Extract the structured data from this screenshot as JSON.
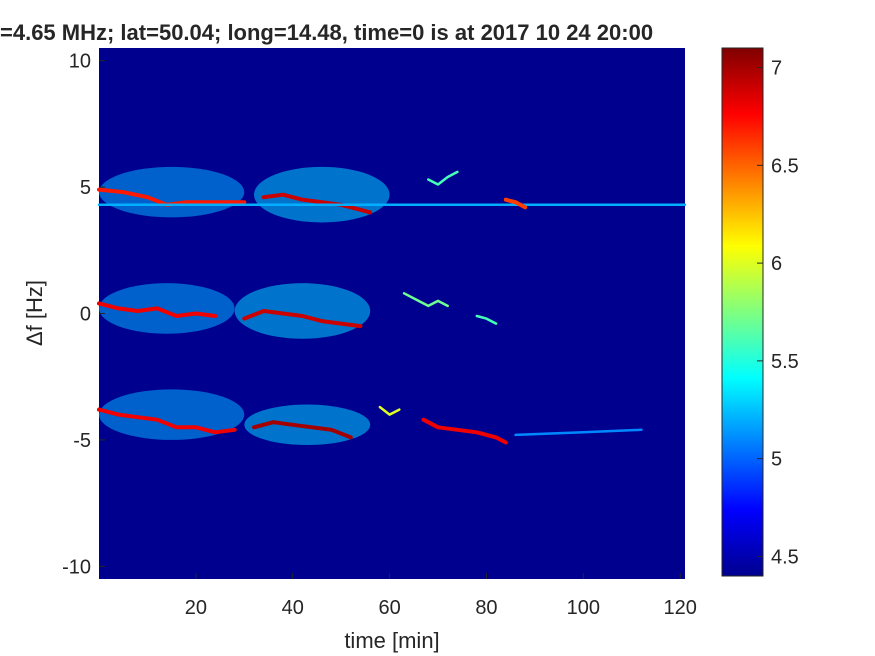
{
  "chart_data": {
    "type": "heatmap",
    "title": "=4.65 MHz;  lat=50.04; long=14.48, time=0 is at 2017 10 24 20:00",
    "xlabel": "time [min]",
    "ylabel": "Δf [Hz]",
    "xlim": [
      0,
      121
    ],
    "ylim": [
      -10.5,
      10.5
    ],
    "x_ticks": [
      20,
      40,
      60,
      80,
      100,
      120
    ],
    "y_ticks": [
      -10,
      -5,
      0,
      5,
      10
    ],
    "colormap": "jet",
    "colorbar": {
      "min": 4.4,
      "max": 7.1,
      "ticks": [
        4.5,
        5,
        5.5,
        6,
        6.5,
        7
      ],
      "tick_labels": [
        "4.5",
        "5",
        "5.5",
        "6",
        "6.5",
        "7"
      ]
    },
    "background_color": "#00008f",
    "traces": [
      {
        "points": [
          [
            0,
            4.9
          ],
          [
            5,
            4.8
          ],
          [
            10,
            4.6
          ],
          [
            14,
            4.3
          ],
          [
            18,
            4.4
          ],
          [
            22,
            4.4
          ],
          [
            26,
            4.4
          ],
          [
            30,
            4.4
          ]
        ],
        "level": 6.7
      },
      {
        "points": [
          [
            34,
            4.6
          ],
          [
            38,
            4.7
          ],
          [
            42,
            4.5
          ],
          [
            46,
            4.4
          ],
          [
            50,
            4.3
          ],
          [
            54,
            4.1
          ],
          [
            56,
            4.0
          ]
        ],
        "level": 6.9
      },
      {
        "points": [
          [
            0,
            4.3
          ],
          [
            40,
            4.3
          ],
          [
            80,
            4.3
          ],
          [
            88,
            4.3
          ],
          [
            121,
            4.3
          ]
        ],
        "level": 5.2
      },
      {
        "points": [
          [
            84,
            4.5
          ],
          [
            86,
            4.4
          ],
          [
            88,
            4.2
          ]
        ],
        "level": 6.6
      },
      {
        "points": [
          [
            68,
            5.3
          ],
          [
            70,
            5.1
          ],
          [
            72,
            5.4
          ],
          [
            74,
            5.6
          ]
        ],
        "level": 5.6
      },
      {
        "points": [
          [
            0,
            0.4
          ],
          [
            4,
            0.2
          ],
          [
            8,
            0.1
          ],
          [
            12,
            0.2
          ],
          [
            16,
            -0.1
          ],
          [
            20,
            0.0
          ],
          [
            24,
            -0.1
          ]
        ],
        "level": 6.8
      },
      {
        "points": [
          [
            30,
            -0.2
          ],
          [
            34,
            0.1
          ],
          [
            38,
            0.0
          ],
          [
            42,
            -0.1
          ],
          [
            46,
            -0.3
          ],
          [
            50,
            -0.4
          ],
          [
            54,
            -0.5
          ]
        ],
        "level": 6.9
      },
      {
        "points": [
          [
            63,
            0.8
          ],
          [
            66,
            0.5
          ],
          [
            68,
            0.3
          ],
          [
            70,
            0.5
          ],
          [
            72,
            0.3
          ]
        ],
        "level": 5.7
      },
      {
        "points": [
          [
            78,
            -0.1
          ],
          [
            80,
            -0.2
          ],
          [
            82,
            -0.4
          ]
        ],
        "level": 5.6
      },
      {
        "points": [
          [
            0,
            -3.8
          ],
          [
            4,
            -4.0
          ],
          [
            8,
            -4.1
          ],
          [
            12,
            -4.2
          ],
          [
            16,
            -4.5
          ],
          [
            20,
            -4.5
          ],
          [
            24,
            -4.7
          ],
          [
            28,
            -4.6
          ]
        ],
        "level": 6.8
      },
      {
        "points": [
          [
            32,
            -4.5
          ],
          [
            36,
            -4.3
          ],
          [
            40,
            -4.4
          ],
          [
            44,
            -4.5
          ],
          [
            48,
            -4.6
          ],
          [
            52,
            -4.9
          ]
        ],
        "level": 7.0
      },
      {
        "points": [
          [
            58,
            -3.7
          ],
          [
            60,
            -4.0
          ],
          [
            62,
            -3.8
          ]
        ],
        "level": 6.0
      },
      {
        "points": [
          [
            67,
            -4.2
          ],
          [
            70,
            -4.5
          ],
          [
            74,
            -4.6
          ],
          [
            78,
            -4.7
          ],
          [
            82,
            -4.9
          ],
          [
            84,
            -5.1
          ]
        ],
        "level": 6.8
      },
      {
        "points": [
          [
            86,
            -4.8
          ],
          [
            100,
            -4.7
          ],
          [
            112,
            -4.6
          ]
        ],
        "level": 5.1
      }
    ],
    "patches": [
      {
        "x": [
          0,
          30
        ],
        "y": [
          3.8,
          5.8
        ],
        "level": 5.2
      },
      {
        "x": [
          32,
          60
        ],
        "y": [
          3.6,
          5.8
        ],
        "level": 5.3
      },
      {
        "x": [
          0,
          28
        ],
        "y": [
          -0.8,
          1.2
        ],
        "level": 5.2
      },
      {
        "x": [
          28,
          56
        ],
        "y": [
          -1.0,
          1.2
        ],
        "level": 5.3
      },
      {
        "x": [
          0,
          30
        ],
        "y": [
          -5.0,
          -3.0
        ],
        "level": 5.2
      },
      {
        "x": [
          30,
          56
        ],
        "y": [
          -5.2,
          -3.6
        ],
        "level": 5.3
      }
    ]
  }
}
